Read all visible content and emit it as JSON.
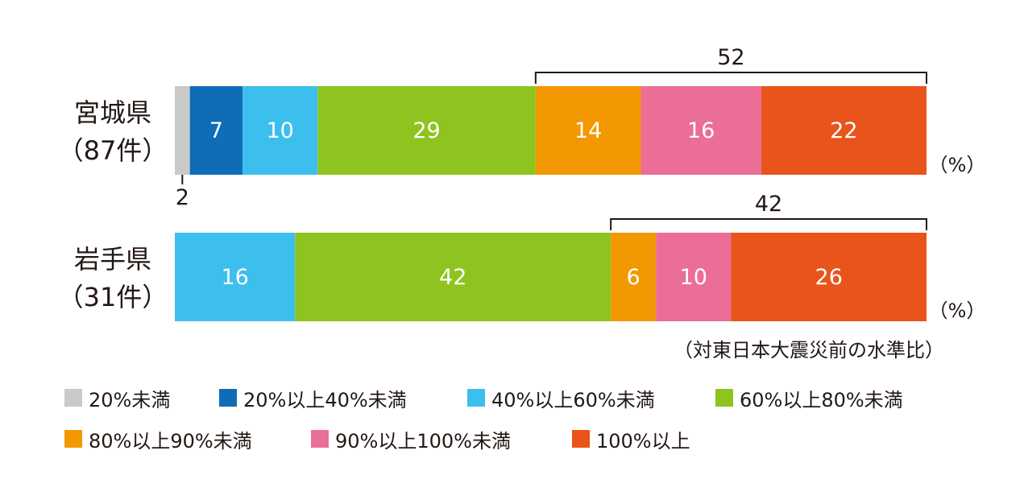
{
  "chart_data": {
    "type": "bar",
    "orientation": "horizontal",
    "stacked": true,
    "percent_unit": "（%）",
    "note": "（対東日本大震災前の水準比）",
    "categories": [
      {
        "line1": "宮城県",
        "line2": "（87件）"
      },
      {
        "line1": "岩手県",
        "line2": "（31件）"
      }
    ],
    "series": [
      {
        "name": "20%未満",
        "color": "#c9caca",
        "values": [
          2,
          0
        ]
      },
      {
        "name": "20%以上40%未満",
        "color": "#0f6db8",
        "values": [
          7,
          0
        ]
      },
      {
        "name": "40%以上60%未満",
        "color": "#3dbfee",
        "values": [
          10,
          16
        ]
      },
      {
        "name": "60%以上80%未満",
        "color": "#8fc31f",
        "values": [
          29,
          42
        ]
      },
      {
        "name": "80%以上90%未満",
        "color": "#f39800",
        "values": [
          14,
          6
        ]
      },
      {
        "name": "90%以上100%未満",
        "color": "#eb6e96",
        "values": [
          16,
          10
        ]
      },
      {
        "name": "100%以上",
        "color": "#e9541b",
        "values": [
          22,
          26
        ]
      }
    ],
    "bracket_totals": [
      52,
      42
    ],
    "xlim": [
      0,
      100
    ],
    "grid": false,
    "legend_position": "bottom"
  }
}
